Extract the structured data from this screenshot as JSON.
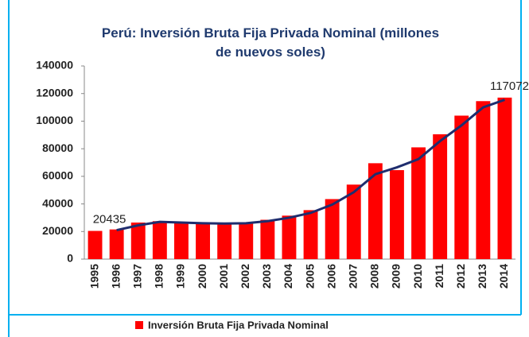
{
  "chart_data": {
    "type": "bar",
    "title": "Perú: Inversión Bruta Fija Privada Nominal (millones de nuevos soles)",
    "categories": [
      "1995",
      "1996",
      "1997",
      "1998",
      "1999",
      "2000",
      "2001",
      "2002",
      "2003",
      "2004",
      "2005",
      "2006",
      "2007",
      "2008",
      "2009",
      "2010",
      "2011",
      "2012",
      "2013",
      "2014"
    ],
    "series": [
      {
        "name": "Inversión Bruta Fija Privada Nominal",
        "color": "#ff0000",
        "type": "bar",
        "values": [
          20435,
          21500,
          26500,
          27500,
          26500,
          26000,
          25500,
          26000,
          28500,
          31500,
          35500,
          43500,
          54000,
          69500,
          64500,
          81000,
          90500,
          104000,
          114500,
          117072
        ],
        "value_labels": [
          "20435",
          null,
          null,
          null,
          null,
          null,
          null,
          null,
          null,
          null,
          null,
          null,
          null,
          null,
          null,
          null,
          null,
          null,
          null,
          "117072"
        ]
      },
      {
        "color": "#1f2d6e",
        "type": "line",
        "values": [
          null,
          21000,
          24500,
          27000,
          26500,
          26000,
          25800,
          26000,
          27500,
          30000,
          33500,
          39500,
          48500,
          61500,
          66500,
          72500,
          85500,
          97000,
          110000,
          115500
        ]
      }
    ],
    "ylim": [
      0,
      140000
    ],
    "yticks": [
      0,
      20000,
      40000,
      60000,
      80000,
      100000,
      120000,
      140000
    ],
    "legend": "bottom"
  }
}
